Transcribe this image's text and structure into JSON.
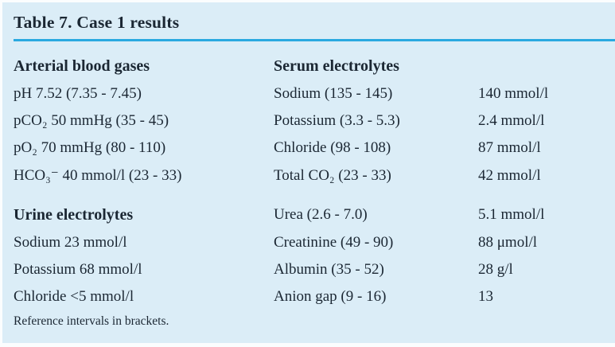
{
  "table": {
    "title": "Table 7. Case 1 results",
    "footnote": "Reference intervals in brackets.",
    "colors": {
      "panel_bg": "#dbedf7",
      "rule": "#2aa9e0",
      "text": "#1b2733"
    },
    "sections": [
      "Arterial blood gases",
      "Urine electrolytes",
      "Serum electrolytes"
    ],
    "rows": [
      {
        "c1": "Arterial blood gases",
        "c2": "Serum electrolytes",
        "c3": ""
      },
      {
        "c1": "pH 7.52 (7.35 - 7.45)",
        "c2": "Sodium (135 - 145)",
        "c3": "140 mmol/l"
      },
      {
        "c1": "pCO₂ 50 mmHg (35 - 45)",
        "c2": "Potassium (3.3 - 5.3)",
        "c3": "2.4 mmol/l"
      },
      {
        "c1": "pO₂ 70 mmHg (80 - 110)",
        "c2": "Chloride (98 - 108)",
        "c3": "87 mmol/l"
      },
      {
        "c1": "HCO₃⁻ 40 mmol/l (23 - 33)",
        "c2": "Total CO₂ (23 - 33)",
        "c3": "42 mmol/l"
      },
      {
        "c1": "Urine electrolytes",
        "c2": "Urea (2.6 - 7.0)",
        "c3": "5.1 mmol/l"
      },
      {
        "c1": "Sodium 23 mmol/l",
        "c2": "Creatinine (49 - 90)",
        "c3": "88 μmol/l"
      },
      {
        "c1": "Potassium 68 mmol/l",
        "c2": "Albumin (35 - 52)",
        "c3": "28 g/l"
      },
      {
        "c1": "Chloride <5 mmol/l",
        "c2": "Anion gap (9 - 16)",
        "c3": "13"
      }
    ]
  }
}
